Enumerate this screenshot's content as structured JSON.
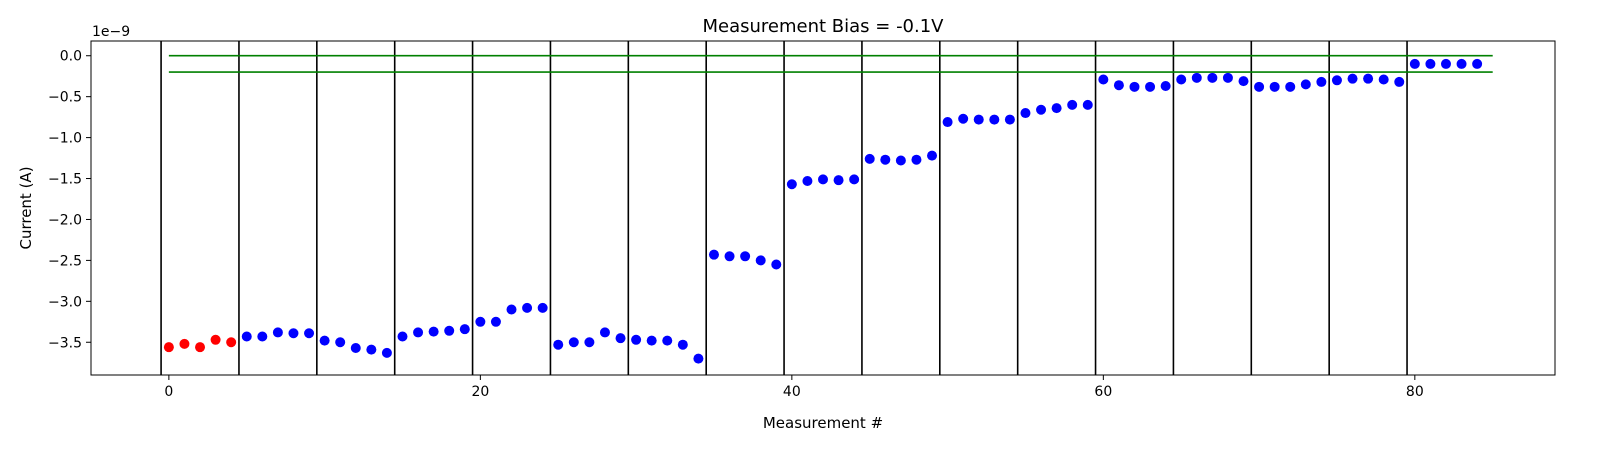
{
  "chart_data": {
    "type": "scatter",
    "title": "Measurement Bias = -0.1V",
    "xlabel": "Measurement #",
    "ylabel": "Current (A)",
    "y_offset_text": "1e−9",
    "xlim": [
      -5,
      89
    ],
    "ylim": [
      -3.9,
      0.18
    ],
    "x_ticks": [
      0,
      20,
      40,
      60,
      80
    ],
    "x_tick_labels": [
      "0",
      "20",
      "40",
      "60",
      "80"
    ],
    "y_ticks": [
      0,
      -0.5,
      -1.0,
      -1.5,
      -2.0,
      -2.5,
      -3.0,
      -3.5
    ],
    "y_tick_labels": [
      "0.0",
      "−0.5",
      "−1.0",
      "−1.5",
      "−2.0",
      "−2.5",
      "−3.0",
      "−3.5"
    ],
    "grid": false,
    "separators": {
      "color": "#000000",
      "x": [
        -0.5,
        4.5,
        9.5,
        14.5,
        19.5,
        24.5,
        29.5,
        34.5,
        39.5,
        44.5,
        49.5,
        54.5,
        59.5,
        64.5,
        69.5,
        74.5,
        79.5
      ]
    },
    "reference_lines": {
      "color": "#008000",
      "x_range": [
        0,
        85
      ],
      "y": [
        0.0,
        -0.2
      ]
    },
    "series": [
      {
        "color": "#ff0000",
        "points": [
          [
            0,
            -3.56
          ],
          [
            1,
            -3.52
          ],
          [
            2,
            -3.56
          ],
          [
            3,
            -3.47
          ],
          [
            4,
            -3.5
          ]
        ]
      },
      {
        "color": "#0000ff",
        "points": [
          [
            5,
            -3.43
          ],
          [
            6,
            -3.43
          ],
          [
            7,
            -3.38
          ],
          [
            8,
            -3.39
          ],
          [
            9,
            -3.39
          ],
          [
            10,
            -3.48
          ],
          [
            11,
            -3.5
          ],
          [
            12,
            -3.57
          ],
          [
            13,
            -3.59
          ],
          [
            14,
            -3.63
          ],
          [
            15,
            -3.43
          ],
          [
            16,
            -3.38
          ],
          [
            17,
            -3.37
          ],
          [
            18,
            -3.36
          ],
          [
            19,
            -3.34
          ],
          [
            20,
            -3.25
          ],
          [
            21,
            -3.25
          ],
          [
            22,
            -3.1
          ],
          [
            23,
            -3.08
          ],
          [
            24,
            -3.08
          ],
          [
            25,
            -3.53
          ],
          [
            26,
            -3.5
          ],
          [
            27,
            -3.5
          ],
          [
            28,
            -3.38
          ],
          [
            29,
            -3.45
          ],
          [
            30,
            -3.47
          ],
          [
            31,
            -3.48
          ],
          [
            32,
            -3.48
          ],
          [
            33,
            -3.53
          ],
          [
            34,
            -3.7
          ],
          [
            35,
            -2.43
          ],
          [
            36,
            -2.45
          ],
          [
            37,
            -2.45
          ],
          [
            38,
            -2.5
          ],
          [
            39,
            -2.55
          ],
          [
            40,
            -1.57
          ],
          [
            41,
            -1.53
          ],
          [
            42,
            -1.51
          ],
          [
            43,
            -1.52
          ],
          [
            44,
            -1.51
          ],
          [
            45,
            -1.26
          ],
          [
            46,
            -1.27
          ],
          [
            47,
            -1.28
          ],
          [
            48,
            -1.27
          ],
          [
            49,
            -1.22
          ],
          [
            50,
            -0.81
          ],
          [
            51,
            -0.77
          ],
          [
            52,
            -0.78
          ],
          [
            53,
            -0.78
          ],
          [
            54,
            -0.78
          ],
          [
            55,
            -0.7
          ],
          [
            56,
            -0.66
          ],
          [
            57,
            -0.64
          ],
          [
            58,
            -0.6
          ],
          [
            59,
            -0.6
          ],
          [
            60,
            -0.29
          ],
          [
            61,
            -0.36
          ],
          [
            62,
            -0.38
          ],
          [
            63,
            -0.38
          ],
          [
            64,
            -0.37
          ],
          [
            65,
            -0.29
          ],
          [
            66,
            -0.27
          ],
          [
            67,
            -0.27
          ],
          [
            68,
            -0.27
          ],
          [
            69,
            -0.31
          ],
          [
            70,
            -0.38
          ],
          [
            71,
            -0.38
          ],
          [
            72,
            -0.38
          ],
          [
            73,
            -0.35
          ],
          [
            74,
            -0.32
          ],
          [
            75,
            -0.3
          ],
          [
            76,
            -0.28
          ],
          [
            77,
            -0.28
          ],
          [
            78,
            -0.29
          ],
          [
            79,
            -0.32
          ],
          [
            80,
            -0.1
          ],
          [
            81,
            -0.1
          ],
          [
            82,
            -0.1
          ],
          [
            83,
            -0.1
          ],
          [
            84,
            -0.1
          ]
        ]
      }
    ]
  }
}
